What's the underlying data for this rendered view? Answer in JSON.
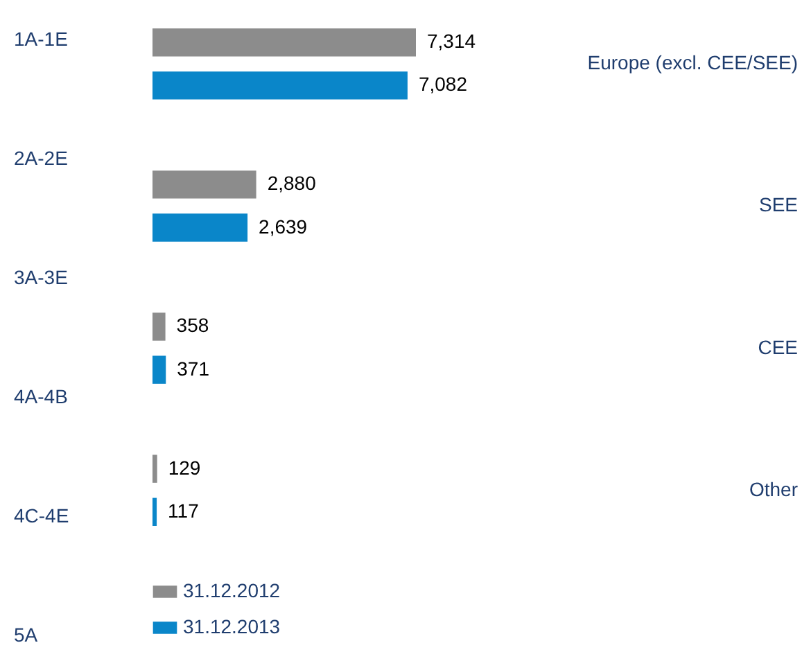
{
  "chart_data": {
    "type": "bar",
    "orientation": "horizontal",
    "categories": [
      "Europe (excl. CEE/SEE)",
      "SEE",
      "CEE",
      "Other"
    ],
    "series": [
      {
        "name": "31.12.2012",
        "color": "#8c8c8c",
        "values": [
          7314,
          2880,
          358,
          129
        ],
        "value_labels": [
          "7,314",
          "2,880",
          "358",
          "129"
        ]
      },
      {
        "name": "31.12.2013",
        "color": "#0a86c9",
        "values": [
          7082,
          2639,
          371,
          117
        ],
        "value_labels": [
          "7,082",
          "2,639",
          "371",
          "117"
        ]
      }
    ],
    "legend": "bottom left",
    "annotations": [
      "1A-1E",
      "2A-2E",
      "3A-3E",
      "4A-4B",
      "4C-4E",
      "5A"
    ]
  }
}
